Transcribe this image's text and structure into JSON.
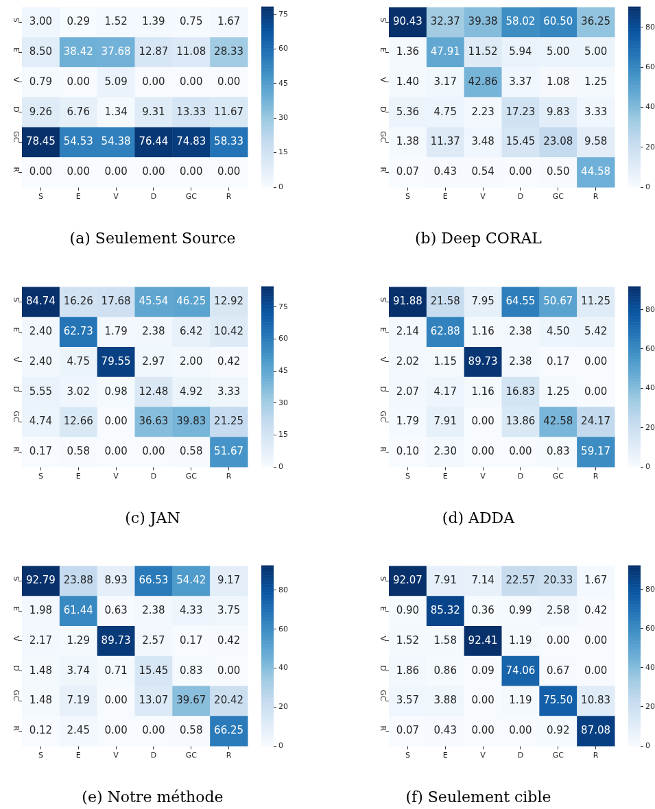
{
  "chart_data": [
    {
      "type": "heatmap",
      "title": "(a) Seulement Source",
      "categories": [
        "S",
        "E",
        "V",
        "D",
        "GC",
        "R"
      ],
      "y_categories": [
        "S",
        "E",
        "V",
        "D",
        "GC",
        "R"
      ],
      "clim": [
        0,
        78.45
      ],
      "cticks": [
        0,
        15,
        30,
        45,
        60,
        75
      ],
      "data_labels": true,
      "cells": [
        [
          3.0,
          0.29,
          1.52,
          1.39,
          0.75,
          1.67
        ],
        [
          8.5,
          38.42,
          37.68,
          12.87,
          11.08,
          28.33
        ],
        [
          0.79,
          0.0,
          5.09,
          0.0,
          0.0,
          0.0
        ],
        [
          9.26,
          6.76,
          1.34,
          9.31,
          13.33,
          11.67
        ],
        [
          78.45,
          54.53,
          54.38,
          76.44,
          74.83,
          58.33
        ],
        [
          0.0,
          0.0,
          0.0,
          0.0,
          0.0,
          0.0
        ]
      ],
      "cell_labels": [
        [
          "3.00",
          "0.29",
          "1.52",
          "1.39",
          "0.75",
          "1.67"
        ],
        [
          "8.50",
          "38.42",
          "37.68",
          "12.87",
          "11.08",
          "28.33"
        ],
        [
          "0.79",
          "0.00",
          "5.09",
          "0.00",
          "0.00",
          "0.00"
        ],
        [
          "9.26",
          "6.76",
          "1.34",
          "9.31",
          "13.33",
          "11.67"
        ],
        [
          "78.45",
          "54.53",
          "54.38",
          "76.44",
          "74.83",
          "58.33"
        ],
        [
          "0.00",
          "0.00",
          "0.00",
          "0.00",
          "0.00",
          "0.00"
        ]
      ]
    },
    {
      "type": "heatmap",
      "title": "(b) Deep CORAL",
      "categories": [
        "S",
        "E",
        "V",
        "D",
        "GC",
        "R"
      ],
      "y_categories": [
        "S",
        "E",
        "V",
        "D",
        "GC",
        "R"
      ],
      "clim": [
        0,
        90.43
      ],
      "cticks": [
        0,
        20,
        40,
        60,
        80
      ],
      "data_labels": true,
      "cells": [
        [
          90.43,
          32.37,
          39.38,
          58.02,
          60.5,
          36.25
        ],
        [
          1.36,
          47.91,
          11.52,
          5.94,
          5.0,
          5.0
        ],
        [
          1.4,
          3.17,
          42.86,
          3.37,
          1.08,
          1.25
        ],
        [
          5.36,
          4.75,
          2.23,
          17.23,
          9.83,
          3.33
        ],
        [
          1.38,
          11.37,
          3.48,
          15.45,
          23.08,
          9.58
        ],
        [
          0.07,
          0.43,
          0.54,
          0.0,
          0.5,
          44.58
        ]
      ],
      "cell_labels": [
        [
          "90.43",
          "32.37",
          "39.38",
          "58.02",
          "60.50",
          "36.25"
        ],
        [
          "1.36",
          "47.91",
          "11.52",
          "5.94",
          "5.00",
          "5.00"
        ],
        [
          "1.40",
          "3.17",
          "42.86",
          "3.37",
          "1.08",
          "1.25"
        ],
        [
          "5.36",
          "4.75",
          "2.23",
          "17.23",
          "9.83",
          "3.33"
        ],
        [
          "1.38",
          "11.37",
          "3.48",
          "15.45",
          "23.08",
          "9.58"
        ],
        [
          "0.07",
          "0.43",
          "0.54",
          "0.00",
          "0.50",
          "44.58"
        ]
      ]
    },
    {
      "type": "heatmap",
      "title": "(c) JAN",
      "categories": [
        "S",
        "E",
        "V",
        "D",
        "GC",
        "R"
      ],
      "y_categories": [
        "S",
        "E",
        "V",
        "D",
        "GC",
        "R"
      ],
      "clim": [
        0,
        84.74
      ],
      "cticks": [
        0,
        15,
        30,
        45,
        60,
        75
      ],
      "data_labels": true,
      "cells": [
        [
          84.74,
          16.26,
          17.68,
          45.54,
          46.25,
          12.92
        ],
        [
          2.4,
          62.73,
          1.79,
          2.38,
          6.42,
          10.42
        ],
        [
          2.4,
          4.75,
          79.55,
          2.97,
          2.0,
          0.42
        ],
        [
          5.55,
          3.02,
          0.98,
          12.48,
          4.92,
          3.33
        ],
        [
          4.74,
          12.66,
          0.0,
          36.63,
          39.83,
          21.25
        ],
        [
          0.17,
          0.58,
          0.0,
          0.0,
          0.58,
          51.67
        ]
      ],
      "cell_labels": [
        [
          "84.74",
          "16.26",
          "17.68",
          "45.54",
          "46.25",
          "12.92"
        ],
        [
          "2.40",
          "62.73",
          "1.79",
          "2.38",
          "6.42",
          "10.42"
        ],
        [
          "2.40",
          "4.75",
          "79.55",
          "2.97",
          "2.00",
          "0.42"
        ],
        [
          "5.55",
          "3.02",
          "0.98",
          "12.48",
          "4.92",
          "3.33"
        ],
        [
          "4.74",
          "12.66",
          "0.00",
          "36.63",
          "39.83",
          "21.25"
        ],
        [
          "0.17",
          "0.58",
          "0.00",
          "0.00",
          "0.58",
          "51.67"
        ]
      ]
    },
    {
      "type": "heatmap",
      "title": "(d) ADDA",
      "categories": [
        "S",
        "E",
        "V",
        "D",
        "GC",
        "R"
      ],
      "y_categories": [
        "S",
        "E",
        "V",
        "D",
        "GC",
        "R"
      ],
      "clim": [
        0,
        91.88
      ],
      "cticks": [
        0,
        20,
        40,
        60,
        80
      ],
      "data_labels": true,
      "cells": [
        [
          91.88,
          21.58,
          7.95,
          64.55,
          50.67,
          11.25
        ],
        [
          2.14,
          62.88,
          1.16,
          2.38,
          4.5,
          5.42
        ],
        [
          2.02,
          1.15,
          89.73,
          2.38,
          0.17,
          0.0
        ],
        [
          2.07,
          4.17,
          1.16,
          16.83,
          1.25,
          0.0
        ],
        [
          1.79,
          7.91,
          0.0,
          13.86,
          42.58,
          24.17
        ],
        [
          0.1,
          2.3,
          0.0,
          0.0,
          0.83,
          59.17
        ]
      ],
      "cell_labels": [
        [
          "91.88",
          "21.58",
          "7.95",
          "64.55",
          "50.67",
          "11.25"
        ],
        [
          "2.14",
          "62.88",
          "1.16",
          "2.38",
          "4.50",
          "5.42"
        ],
        [
          "2.02",
          "1.15",
          "89.73",
          "2.38",
          "0.17",
          "0.00"
        ],
        [
          "2.07",
          "4.17",
          "1.16",
          "16.83",
          "1.25",
          "0.00"
        ],
        [
          "1.79",
          "7.91",
          "0.00",
          "13.86",
          "42.58",
          "24.17"
        ],
        [
          "0.10",
          "2.30",
          "0.00",
          "0.00",
          "0.83",
          "59.17"
        ]
      ]
    },
    {
      "type": "heatmap",
      "title": "(e) Notre méthode",
      "categories": [
        "S",
        "E",
        "V",
        "D",
        "GC",
        "R"
      ],
      "y_categories": [
        "S",
        "E",
        "V",
        "D",
        "GC",
        "R"
      ],
      "clim": [
        0,
        92.79
      ],
      "cticks": [
        0,
        20,
        40,
        60,
        80
      ],
      "data_labels": true,
      "cells": [
        [
          92.79,
          23.88,
          8.93,
          66.53,
          54.42,
          9.17
        ],
        [
          1.98,
          61.44,
          0.63,
          2.38,
          4.33,
          3.75
        ],
        [
          2.17,
          1.29,
          89.73,
          2.57,
          0.17,
          0.42
        ],
        [
          1.48,
          3.74,
          0.71,
          15.45,
          0.83,
          0.0
        ],
        [
          1.48,
          7.19,
          0.0,
          13.07,
          39.67,
          20.42
        ],
        [
          0.12,
          2.45,
          0.0,
          0.0,
          0.58,
          66.25
        ]
      ],
      "cell_labels": [
        [
          "92.79",
          "23.88",
          "8.93",
          "66.53",
          "54.42",
          "9.17"
        ],
        [
          "1.98",
          "61.44",
          "0.63",
          "2.38",
          "4.33",
          "3.75"
        ],
        [
          "2.17",
          "1.29",
          "89.73",
          "2.57",
          "0.17",
          "0.42"
        ],
        [
          "1.48",
          "3.74",
          "0.71",
          "15.45",
          "0.83",
          "0.00"
        ],
        [
          "1.48",
          "7.19",
          "0.00",
          "13.07",
          "39.67",
          "20.42"
        ],
        [
          "0.12",
          "2.45",
          "0.00",
          "0.00",
          "0.58",
          "66.25"
        ]
      ]
    },
    {
      "type": "heatmap",
      "title": "(f) Seulement cible",
      "categories": [
        "S",
        "E",
        "V",
        "D",
        "GC",
        "R"
      ],
      "y_categories": [
        "S",
        "E",
        "V",
        "D",
        "GC",
        "R"
      ],
      "clim": [
        0,
        92.41
      ],
      "cticks": [
        0,
        20,
        40,
        60,
        80
      ],
      "data_labels": true,
      "cells": [
        [
          92.07,
          7.91,
          7.14,
          22.57,
          20.33,
          1.67
        ],
        [
          0.9,
          85.32,
          0.36,
          0.99,
          2.58,
          0.42
        ],
        [
          1.52,
          1.58,
          92.41,
          1.19,
          0.0,
          0.0
        ],
        [
          1.86,
          0.86,
          0.09,
          74.06,
          0.67,
          0.0
        ],
        [
          3.57,
          3.88,
          0.0,
          1.19,
          75.5,
          10.83
        ],
        [
          0.07,
          0.43,
          0.0,
          0.0,
          0.92,
          87.08
        ]
      ],
      "cell_labels": [
        [
          "92.07",
          "7.91",
          "7.14",
          "22.57",
          "20.33",
          "1.67"
        ],
        [
          "0.90",
          "85.32",
          "0.36",
          "0.99",
          "2.58",
          "0.42"
        ],
        [
          "1.52",
          "1.58",
          "92.41",
          "1.19",
          "0.00",
          "0.00"
        ],
        [
          "1.86",
          "0.86",
          "0.09",
          "74.06",
          "0.67",
          "0.00"
        ],
        [
          "3.57",
          "3.88",
          "0.00",
          "1.19",
          "75.50",
          "10.83"
        ],
        [
          "0.07",
          "0.43",
          "0.00",
          "0.00",
          "0.92",
          "87.08"
        ]
      ]
    }
  ]
}
